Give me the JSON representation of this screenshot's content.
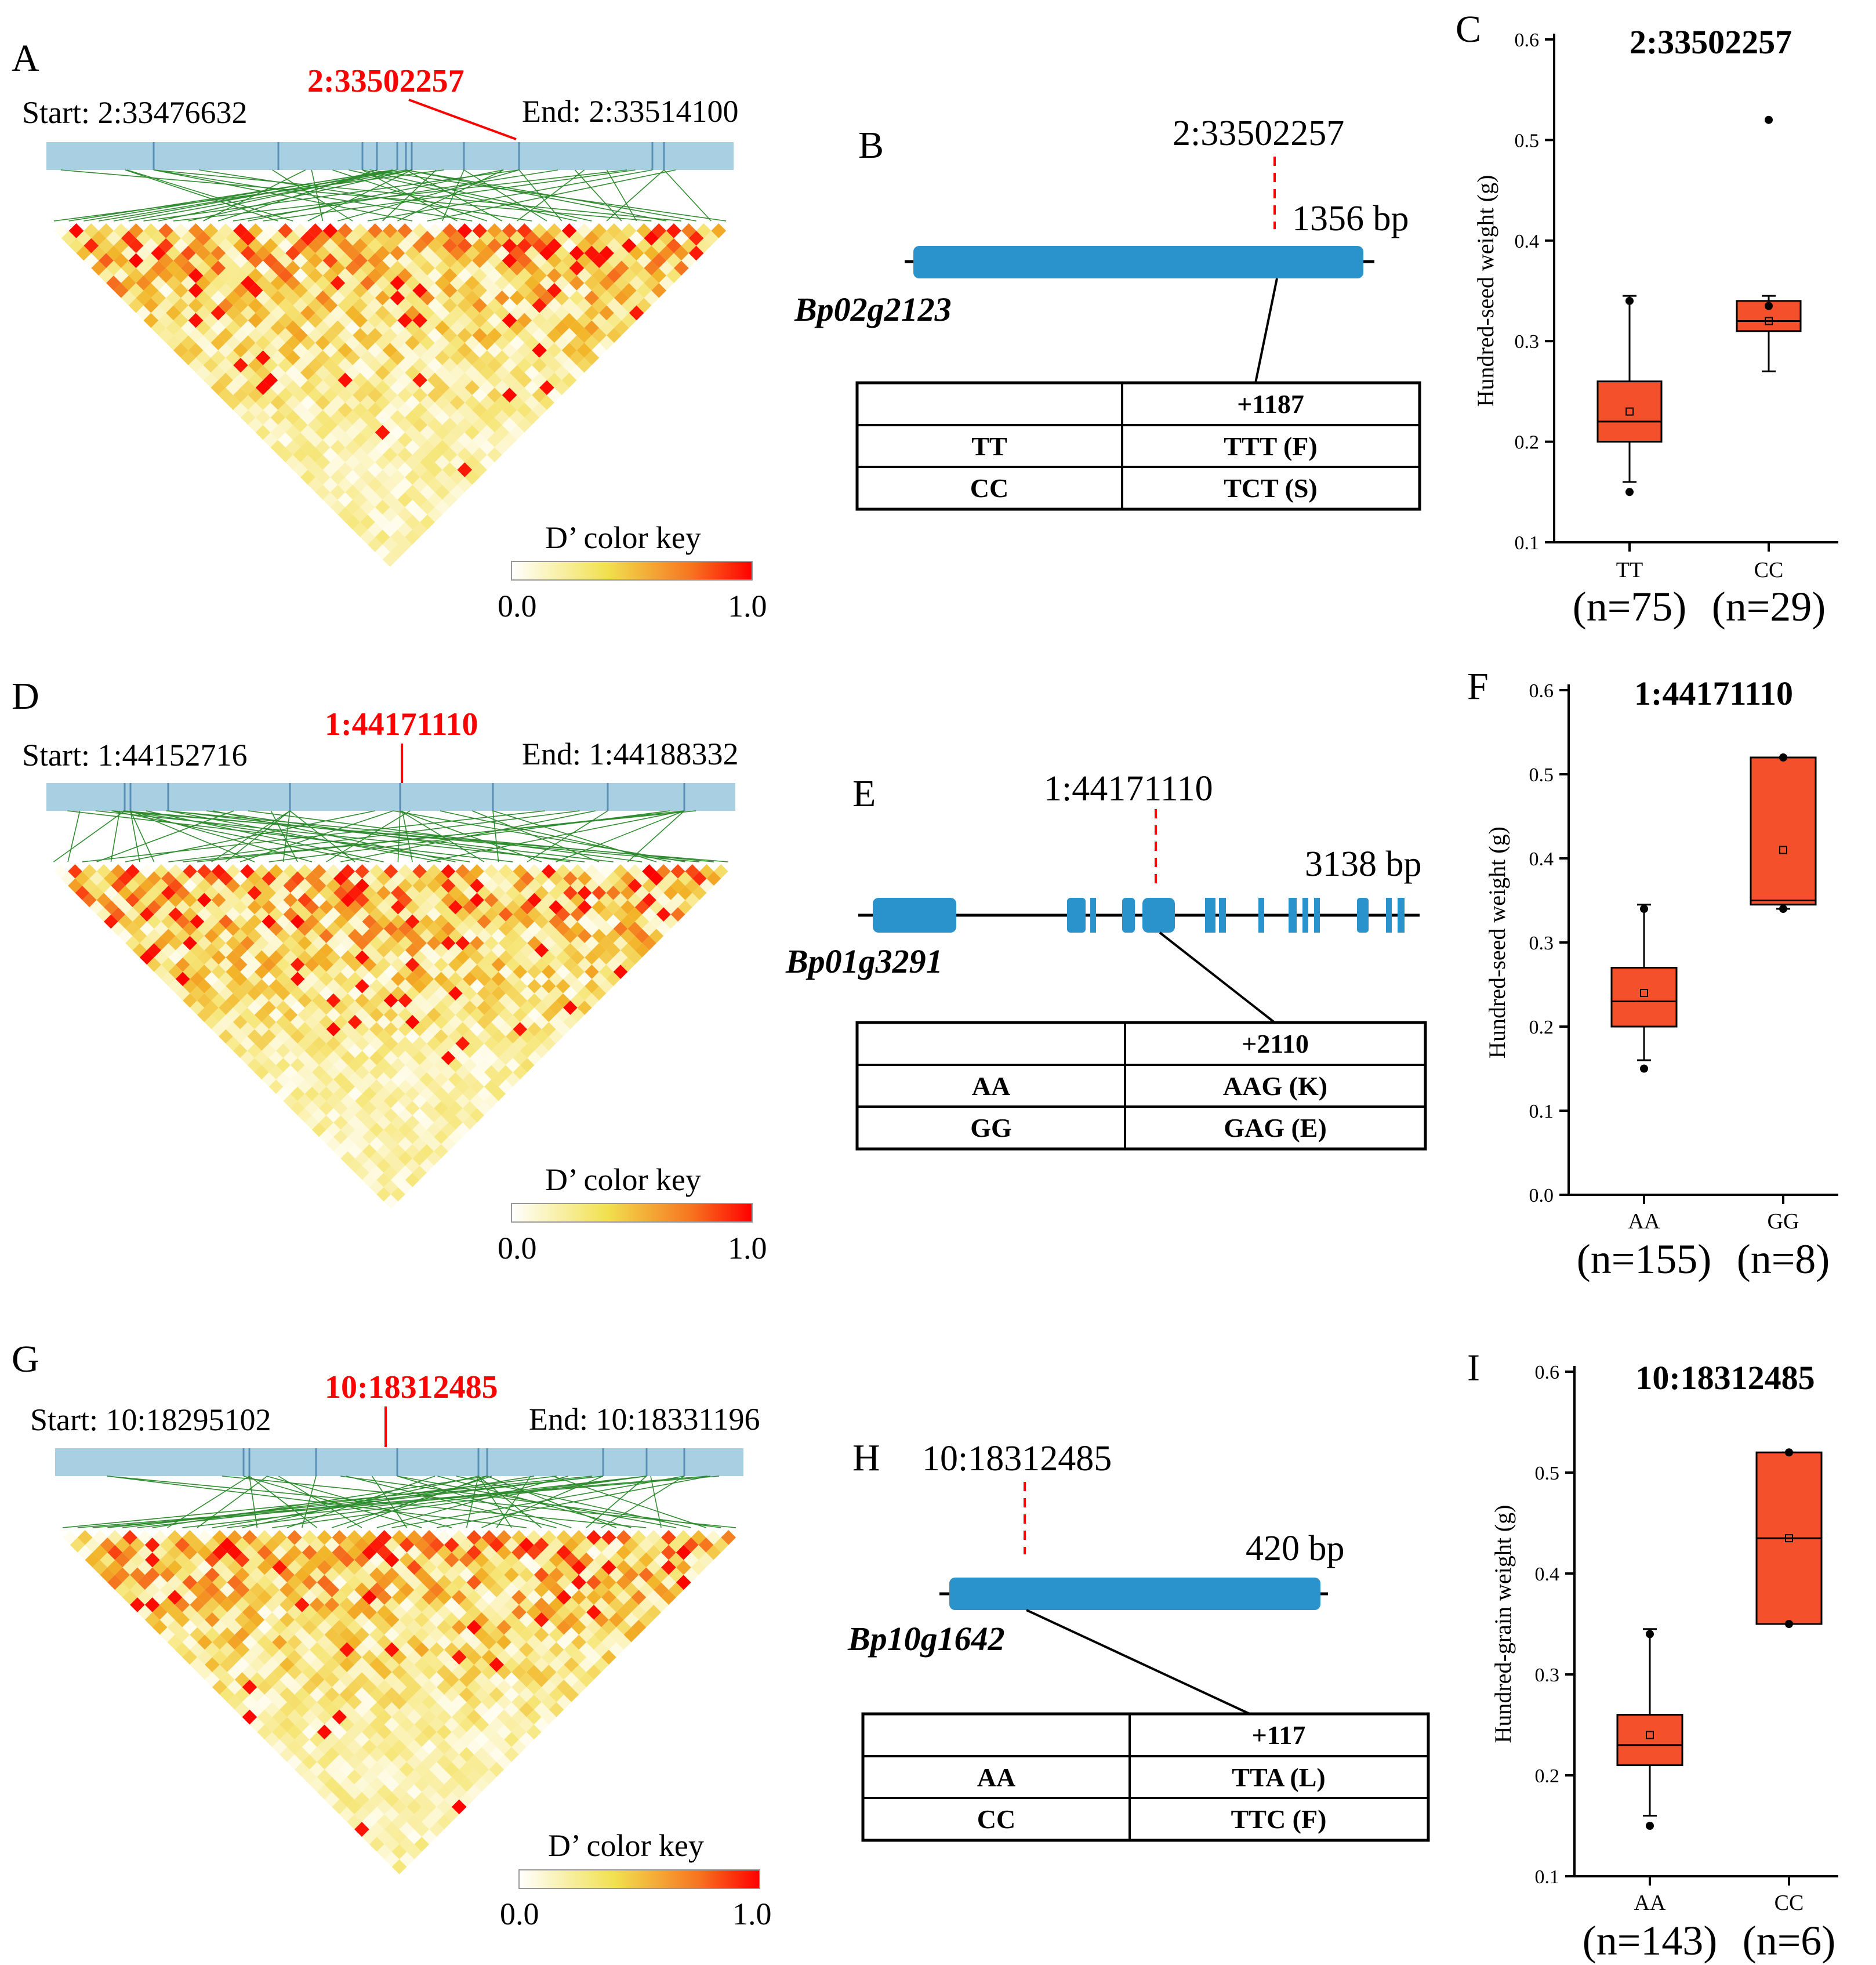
{
  "colors": {
    "ld_strip": "#a9cfe3",
    "ld_marker": "#5a8fb5",
    "ld_lines": "#2e8b2e",
    "gene": "#2a93cc",
    "highlight": "#ff0000",
    "box": "#f4502c",
    "ld_low": "#fffbe6",
    "ld_mid": "#f1dc4f",
    "ld_high": "#ff0000"
  },
  "rows": [
    {
      "id": "row1",
      "ld": {
        "panel": "A",
        "snp": "2:33502257",
        "start": "Start: 2:33476632",
        "end": "End: 2:33514100",
        "key_title": "D’ color key",
        "key_min": "0.0",
        "key_max": "1.0"
      },
      "gene": {
        "panel": "B",
        "snp": "2:33502257",
        "name": "Bp02g2123",
        "length": "1356 bp",
        "table": {
          "header": [
            "",
            "+1187"
          ],
          "rows": [
            [
              "TT",
              "TTT (F)"
            ],
            [
              "CC",
              "TCT (S)"
            ]
          ]
        }
      },
      "chart": {
        "panel": "C",
        "title": "2:33502257",
        "ylabel": "Hundred-seed weight (g)"
      }
    },
    {
      "id": "row2",
      "ld": {
        "panel": "D",
        "snp": "1:44171110",
        "start": "Start: 1:44152716",
        "end": "End: 1:44188332",
        "key_title": "D’ color key",
        "key_min": "0.0",
        "key_max": "1.0"
      },
      "gene": {
        "panel": "E",
        "snp": "1:44171110",
        "name": "Bp01g3291",
        "length": "3138 bp",
        "table": {
          "header": [
            "",
            "+2110"
          ],
          "rows": [
            [
              "AA",
              "AAG (K)"
            ],
            [
              "GG",
              "GAG (E)"
            ]
          ]
        }
      },
      "chart": {
        "panel": "F",
        "title": "1:44171110",
        "ylabel": "Hundred-seed weight (g)"
      }
    },
    {
      "id": "row3",
      "ld": {
        "panel": "G",
        "snp": "10:18312485",
        "start": "Start: 10:18295102",
        "end": "End: 10:18331196",
        "key_title": "D’ color key",
        "key_min": "0.0",
        "key_max": "1.0"
      },
      "gene": {
        "panel": "H",
        "snp": "10:18312485",
        "name": "Bp10g1642",
        "length": "420 bp",
        "table": {
          "header": [
            "",
            "+117"
          ],
          "rows": [
            [
              "AA",
              "TTA (L)"
            ],
            [
              "CC",
              "TTC (F)"
            ]
          ]
        }
      },
      "chart": {
        "panel": "I",
        "title": "10:18312485",
        "ylabel": "Hundred-grain weight (g)"
      }
    }
  ],
  "chart_data": [
    {
      "type": "boxplot",
      "title": "2:33502257",
      "ylabel": "Hundred-seed weight (g)",
      "ylim": [
        0.1,
        0.6
      ],
      "yticks": [
        "0.1",
        "0.2",
        "0.3",
        "0.4",
        "0.5",
        "0.6"
      ],
      "categories": [
        "TT",
        "CC"
      ],
      "counts": [
        "(n=75)",
        "(n=29)"
      ],
      "boxes": [
        {
          "min": 0.16,
          "q1": 0.2,
          "median": 0.22,
          "q3": 0.26,
          "max": 0.345,
          "mean": 0.23,
          "outliers": [
            0.15,
            0.34
          ]
        },
        {
          "min": 0.27,
          "q1": 0.31,
          "median": 0.32,
          "q3": 0.34,
          "max": 0.345,
          "mean": 0.32,
          "outliers": [
            0.52,
            0.335
          ]
        }
      ]
    },
    {
      "type": "boxplot",
      "title": "1:44171110",
      "ylabel": "Hundred-seed weight (g)",
      "ylim": [
        0.0,
        0.6
      ],
      "yticks": [
        "0.0",
        "0.1",
        "0.2",
        "0.3",
        "0.4",
        "0.5",
        "0.6"
      ],
      "categories": [
        "AA",
        "GG"
      ],
      "counts": [
        "(n=155)",
        "(n=8)"
      ],
      "boxes": [
        {
          "min": 0.16,
          "q1": 0.2,
          "median": 0.23,
          "q3": 0.27,
          "max": 0.345,
          "mean": 0.24,
          "outliers": [
            0.15,
            0.34
          ]
        },
        {
          "min": 0.34,
          "q1": 0.345,
          "median": 0.35,
          "q3": 0.52,
          "max": 0.52,
          "mean": 0.41,
          "outliers": [
            0.52,
            0.34
          ]
        }
      ]
    },
    {
      "type": "boxplot",
      "title": "10:18312485",
      "ylabel": "Hundred-grain weight (g)",
      "ylim": [
        0.1,
        0.6
      ],
      "yticks": [
        "0.1",
        "0.2",
        "0.3",
        "0.4",
        "0.5",
        "0.6"
      ],
      "categories": [
        "AA",
        "CC"
      ],
      "counts": [
        "(n=143)",
        "(n=6)"
      ],
      "boxes": [
        {
          "min": 0.16,
          "q1": 0.21,
          "median": 0.23,
          "q3": 0.26,
          "max": 0.345,
          "mean": 0.24,
          "outliers": [
            0.15,
            0.34
          ]
        },
        {
          "min": 0.35,
          "q1": 0.35,
          "median": 0.435,
          "q3": 0.52,
          "max": 0.52,
          "mean": 0.435,
          "outliers": [
            0.52,
            0.35
          ]
        }
      ]
    }
  ]
}
